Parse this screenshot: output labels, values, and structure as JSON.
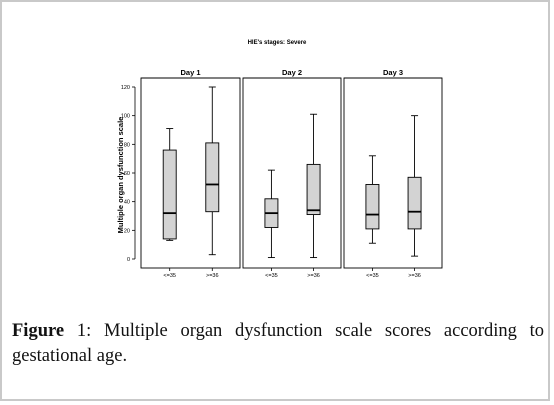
{
  "figure": {
    "caption_label": "Figure",
    "caption_number": "1",
    "caption_text": ": Multiple organ dysfunction scale scores according to gestational age."
  },
  "chart_data": {
    "type": "boxplot",
    "title": "HIE's stages: Severe",
    "ylabel": "Multiple organ dysfunction scale",
    "xlabel": "",
    "ylim": [
      0,
      120
    ],
    "yticks": [
      0,
      20,
      40,
      60,
      80,
      100,
      120
    ],
    "categories": [
      "<=35",
      ">=36"
    ],
    "panels": [
      {
        "title": "Day 1",
        "boxes": [
          {
            "category": "<=35",
            "min": 13,
            "q1": 14,
            "median": 32,
            "q3": 76,
            "max": 91
          },
          {
            "category": ">=36",
            "min": 3,
            "q1": 33,
            "median": 52,
            "q3": 81,
            "max": 120
          }
        ]
      },
      {
        "title": "Day 2",
        "boxes": [
          {
            "category": "<=35",
            "min": 1,
            "q1": 22,
            "median": 32,
            "q3": 42,
            "max": 62
          },
          {
            "category": ">=36",
            "min": 1,
            "q1": 31,
            "median": 34,
            "q3": 66,
            "max": 101
          }
        ]
      },
      {
        "title": "Day 3",
        "boxes": [
          {
            "category": "<=35",
            "min": 11,
            "q1": 21,
            "median": 31,
            "q3": 52,
            "max": 72
          },
          {
            "category": ">=36",
            "min": 2,
            "q1": 21,
            "median": 33,
            "q3": 57,
            "max": 100
          }
        ]
      }
    ],
    "colors": {
      "box_fill": "#d3d3d3",
      "stroke": "#000000"
    },
    "grid": false
  }
}
